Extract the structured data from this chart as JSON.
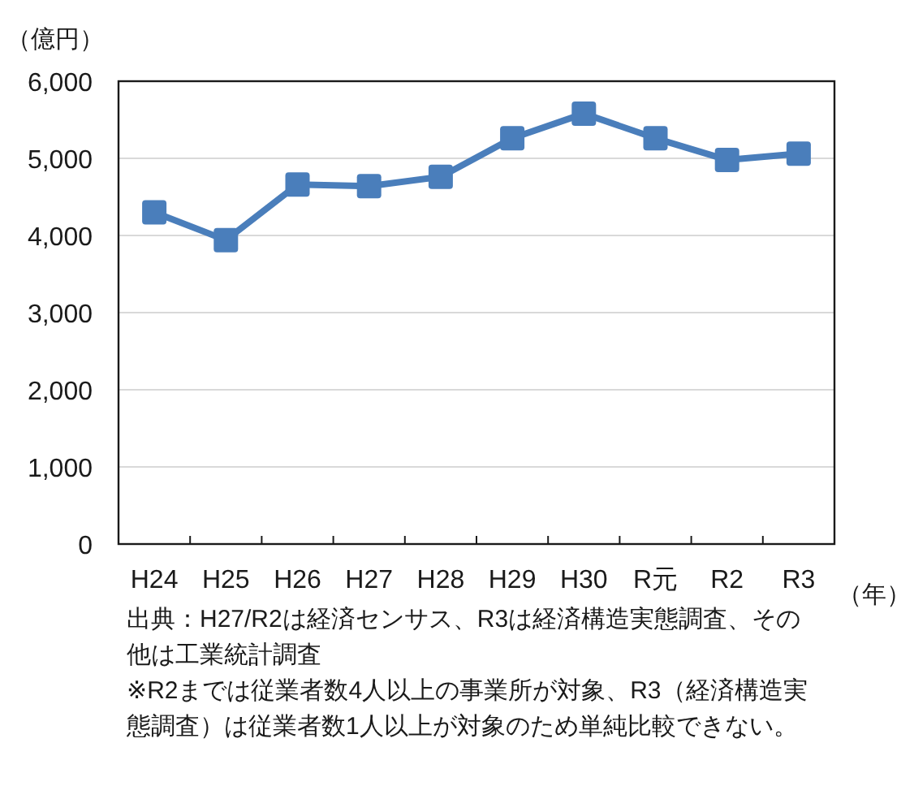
{
  "chart_data": {
    "type": "line",
    "ylabel": "（億円）",
    "xlabel": "（年）",
    "categories": [
      "H24",
      "H25",
      "H26",
      "H27",
      "H28",
      "H29",
      "H30",
      "R元",
      "R2",
      "R3"
    ],
    "series": [
      {
        "color": "#4a7ebb",
        "values": [
          4300,
          3940,
          4660,
          4640,
          4760,
          5260,
          5580,
          5260,
          4980,
          5060
        ]
      }
    ],
    "ylim": [
      0,
      6000
    ],
    "yticks": [
      {
        "value": 0,
        "label": "0"
      },
      {
        "value": 1000,
        "label": "1,000"
      },
      {
        "value": 2000,
        "label": "2,000"
      },
      {
        "value": 3000,
        "label": "3,000"
      },
      {
        "value": 4000,
        "label": "4,000"
      },
      {
        "value": 5000,
        "label": "5,000"
      },
      {
        "value": 6000,
        "label": "6,000"
      }
    ],
    "grid": "y",
    "marker": "square",
    "line_style": "solid",
    "annotations": [
      "出典：H27/R2は経済センサス、R3は経済構造実態調査、その他は工業統計調査",
      "※R2までは従業者数4人以上の事業所が対象、R3（経済構造実態調査）は従業者数1人以上が対象のため単純比較できない。"
    ]
  }
}
